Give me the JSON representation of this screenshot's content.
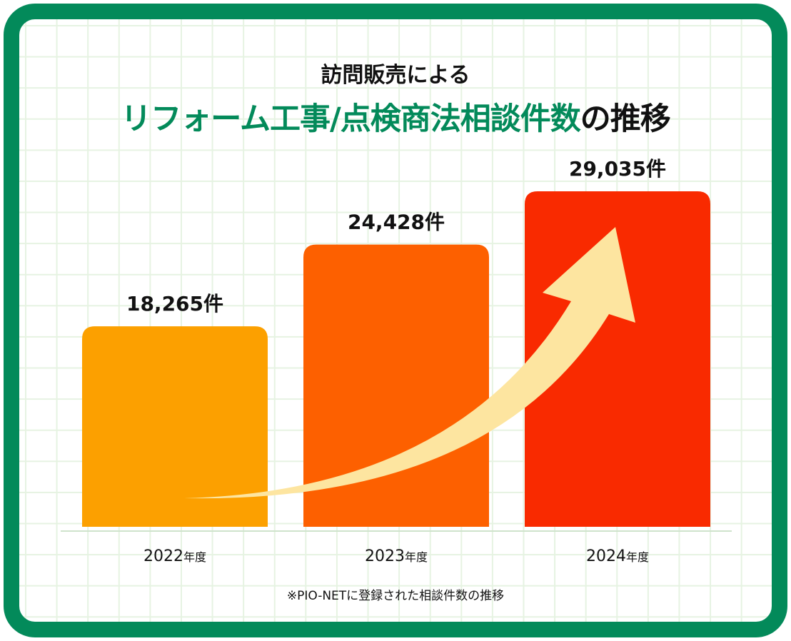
{
  "title": {
    "line1": "訪問販売による",
    "line2_green": "リフォーム工事/点検商法相談件数",
    "line2_black": "の推移"
  },
  "footnote": "※PIO-NETに登録された相談件数の推移",
  "colors": {
    "frame": "#038a5a",
    "arrow": "#fde5a0"
  },
  "chart_data": {
    "type": "bar",
    "title": "訪問販売による リフォーム工事/点検商法相談件数の推移",
    "categories": [
      "2022年度",
      "2023年度",
      "2024年度"
    ],
    "values": [
      18265,
      24428,
      29035
    ],
    "data_labels": [
      "18,265件",
      "24,428件",
      "29,035件"
    ],
    "bar_colors": [
      "#fca000",
      "#fd6000",
      "#f92a00"
    ],
    "xlabel": "",
    "ylabel": "",
    "grid": true,
    "annotation": "upward trend arrow"
  }
}
